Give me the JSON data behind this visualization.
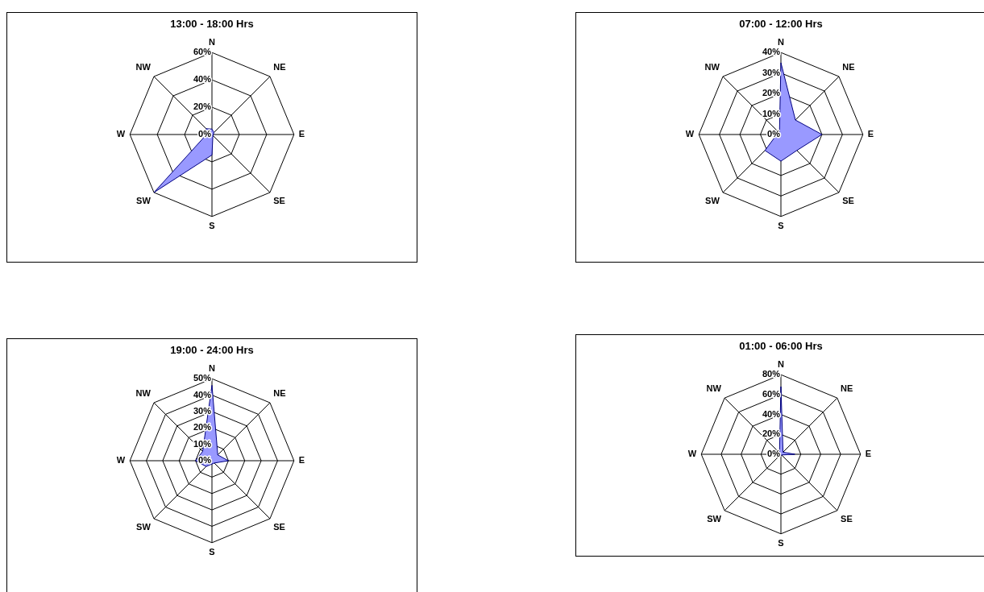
{
  "chart_data": [
    {
      "type": "radar",
      "title": "13:00 - 18:00 Hrs",
      "categories": [
        "N",
        "NE",
        "E",
        "SE",
        "S",
        "SW",
        "W",
        "NW"
      ],
      "ylim": [
        0,
        60
      ],
      "yticks": [
        {
          "value": 0,
          "label": "0%"
        },
        {
          "value": 20,
          "label": "20%"
        },
        {
          "value": 40,
          "label": "40%"
        },
        {
          "value": 60,
          "label": "60%"
        }
      ],
      "grid": true,
      "legend": false,
      "series": [
        {
          "color": "#9999ff",
          "values": [
            4,
            2,
            1,
            1,
            15,
            60,
            4,
            6
          ]
        }
      ]
    },
    {
      "type": "radar",
      "title": "07:00 - 12:00 Hrs",
      "categories": [
        "N",
        "NE",
        "E",
        "SE",
        "S",
        "SW",
        "W",
        "NW"
      ],
      "ylim": [
        0,
        40
      ],
      "yticks": [
        {
          "value": 0,
          "label": "0%"
        },
        {
          "value": 10,
          "label": "10%"
        },
        {
          "value": 20,
          "label": "20%"
        },
        {
          "value": 30,
          "label": "30%"
        },
        {
          "value": 40,
          "label": "40%"
        }
      ],
      "grid": true,
      "legend": false,
      "series": [
        {
          "color": "#9999ff",
          "values": [
            35,
            10,
            20,
            11,
            13,
            11,
            2,
            1
          ]
        }
      ]
    },
    {
      "type": "radar",
      "title": "19:00 - 24:00 Hrs",
      "categories": [
        "N",
        "NE",
        "E",
        "SE",
        "S",
        "SW",
        "W",
        "NW"
      ],
      "ylim": [
        0,
        50
      ],
      "yticks": [
        {
          "value": 0,
          "label": "0%"
        },
        {
          "value": 10,
          "label": "10%"
        },
        {
          "value": 20,
          "label": "20%"
        },
        {
          "value": 30,
          "label": "30%"
        },
        {
          "value": 40,
          "label": "40%"
        },
        {
          "value": 50,
          "label": "50%"
        }
      ],
      "grid": true,
      "legend": false,
      "series": [
        {
          "color": "#9999ff",
          "values": [
            46,
            5,
            10,
            2,
            2,
            5,
            10,
            8
          ]
        }
      ]
    },
    {
      "type": "radar",
      "title": "01:00 - 06:00 Hrs",
      "categories": [
        "N",
        "NE",
        "E",
        "SE",
        "S",
        "SW",
        "W",
        "NW"
      ],
      "ylim": [
        0,
        80
      ],
      "yticks": [
        {
          "value": 0,
          "label": "0%"
        },
        {
          "value": 20,
          "label": "20%"
        },
        {
          "value": 40,
          "label": "40%"
        },
        {
          "value": 60,
          "label": "60%"
        },
        {
          "value": 80,
          "label": "80%"
        }
      ],
      "grid": true,
      "legend": false,
      "series": [
        {
          "color": "#9999ff",
          "values": [
            68,
            3,
            14,
            1,
            1,
            1,
            1,
            2
          ]
        }
      ]
    }
  ]
}
